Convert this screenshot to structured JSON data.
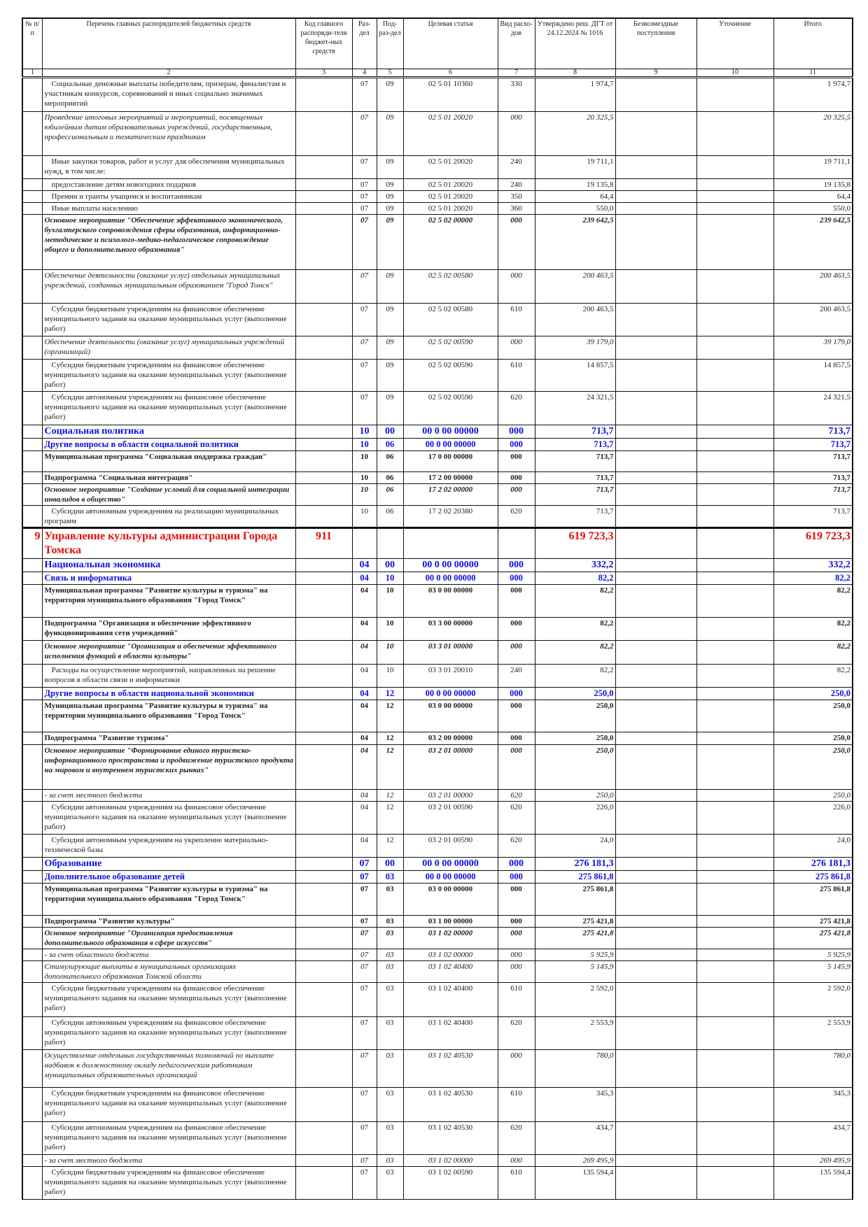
{
  "header": {
    "col1": "№ п/п",
    "col2": "Перечень главных распорядителей бюджетных средств",
    "col3": "Код главного распоряди-теля бюджет-ных средств",
    "col4": "Раз-дел",
    "col5": "Под-раз-дел",
    "col6": "Целевая статья",
    "col7": "Вид расхо-дов",
    "col8": "Утверждено реш. ДГТ от 24.12.2024 № 1016",
    "col9": "Безвозмездные поступления",
    "col10": "Уточнение",
    "col11": "Итого"
  },
  "column_numbers": [
    "1",
    "2",
    "3",
    "4",
    "5",
    "6",
    "7",
    "8",
    "9",
    "10",
    "11"
  ],
  "rows": [
    {
      "style": "n",
      "no": "",
      "name": "Социальные денежные выплаты победителям, призерам, финалистам и участникам конкурсов, соревнований и иных социально значимых мероприятий",
      "code": "",
      "razdel": "07",
      "podrazdel": "09",
      "target": "02 5 01 10360",
      "vid": "330",
      "approved": "1 974,7",
      "grants": "",
      "adjust": "",
      "total": "1 974,7"
    },
    {
      "style": "i",
      "no": "",
      "name": "Проведение итоговых мероприятий и мероприятий, посвященных юбилейным датам образовательных учреждений, государственным, профессиональным и тематическим праздникам",
      "code": "",
      "razdel": "07",
      "podrazdel": "09",
      "target": "02 5 01 20020",
      "vid": "000",
      "approved": "20 325,5",
      "grants": "",
      "adjust": "",
      "total": "20 325,5"
    },
    {
      "style": "n",
      "no": "",
      "name": "Иные закупки товаров, работ и услуг для обеспечения муниципальных нужд, в том числе:",
      "code": "",
      "razdel": "07",
      "podrazdel": "09",
      "target": "02 5 01 20020",
      "vid": "240",
      "approved": "19 711,1",
      "grants": "",
      "adjust": "",
      "total": "19 711,1"
    },
    {
      "style": "n",
      "no": "",
      "name": "предоставление детям новогодних подарков",
      "code": "",
      "razdel": "07",
      "podrazdel": "09",
      "target": "02 5 01 20020",
      "vid": "240",
      "approved": "19 135,8",
      "grants": "",
      "adjust": "",
      "total": "19 135,8"
    },
    {
      "style": "n",
      "no": "",
      "name": "Премии и гранты учащимся и воспитанникам",
      "code": "",
      "razdel": "07",
      "podrazdel": "09",
      "target": "02 5 01 20020",
      "vid": "350",
      "approved": "64,4",
      "grants": "",
      "adjust": "",
      "total": "64,4"
    },
    {
      "style": "n",
      "no": "",
      "name": "Иные выплаты населению",
      "code": "",
      "razdel": "07",
      "podrazdel": "09",
      "target": "02 5 01 20020",
      "vid": "360",
      "approved": "550,0",
      "grants": "",
      "adjust": "",
      "total": "550,0"
    },
    {
      "style": "bi",
      "no": "",
      "name": "Основное мероприятие \"Обеспечение эффективного экономического, бухгалтерского сопровождения сферы образования, информационно-методическое и психолого-медико-педагогическое сопровождение общего и дополнительного образования\"",
      "code": "",
      "razdel": "07",
      "podrazdel": "09",
      "target": "02 5 02 00000",
      "vid": "000",
      "approved": "239 642,5",
      "grants": "",
      "adjust": "",
      "total": "239 642,5"
    },
    {
      "style": "i",
      "no": "",
      "name": "Обеспечение деятельности (оказание услуг) отдельных муниципальных учреждений, созданных муниципальным образованием \"Город Томск\"",
      "code": "",
      "razdel": "07",
      "podrazdel": "09",
      "target": "02 5 02 00580",
      "vid": "000",
      "approved": "200 463,5",
      "grants": "",
      "adjust": "",
      "total": "200 463,5"
    },
    {
      "style": "n",
      "no": "",
      "name": "Субсидии бюджетным учреждениям на финансовое обеспечение муниципального задания на оказание муниципальных услуг (выполнение работ)",
      "code": "",
      "razdel": "07",
      "podrazdel": "09",
      "target": "02 5 02 00580",
      "vid": "610",
      "approved": "200 463,5",
      "grants": "",
      "adjust": "",
      "total": "200 463,5"
    },
    {
      "style": "i",
      "no": "",
      "name": "Обеспечение деятельности (оказание услуг) муниципальных учреждений (организаций)",
      "code": "",
      "razdel": "07",
      "podrazdel": "09",
      "target": "02 5 02 00590",
      "vid": "000",
      "approved": "39 179,0",
      "grants": "",
      "adjust": "",
      "total": "39 179,0"
    },
    {
      "style": "n",
      "no": "",
      "name": "Субсидии бюджетным учреждениям на финансовое обеспечение муниципального задания на оказание муниципальных услуг (выполнение работ)",
      "code": "",
      "razdel": "07",
      "podrazdel": "09",
      "target": "02 5 02 00590",
      "vid": "610",
      "approved": "14 857,5",
      "grants": "",
      "adjust": "",
      "total": "14 857,5"
    },
    {
      "style": "n",
      "no": "",
      "name": "Субсидии автономным учреждениям на финансовое обеспечение муниципального задания на оказание муниципальных услуг (выполнение работ)",
      "code": "",
      "razdel": "07",
      "podrazdel": "09",
      "target": "02 5 02 00590",
      "vid": "620",
      "approved": "24 321,5",
      "grants": "",
      "adjust": "",
      "total": "24 321,5"
    },
    {
      "style": "sec",
      "no": "",
      "name": "Социальная политика",
      "code": "",
      "razdel": "10",
      "podrazdel": "00",
      "target": "00 0 00 00000",
      "vid": "000",
      "approved": "713,7",
      "grants": "",
      "adjust": "",
      "total": "713,7"
    },
    {
      "style": "sub",
      "no": "",
      "name": "Другие вопросы в области социальной политики",
      "code": "",
      "razdel": "10",
      "podrazdel": "06",
      "target": "00 0 00 00000",
      "vid": "000",
      "approved": "713,7",
      "grants": "",
      "adjust": "",
      "total": "713,7"
    },
    {
      "style": "b",
      "no": "",
      "name": "Муниципальная программа \"Социальная поддержка граждан\"",
      "code": "",
      "razdel": "10",
      "podrazdel": "06",
      "target": "17 0 00 00000",
      "vid": "000",
      "approved": "713,7",
      "grants": "",
      "adjust": "",
      "total": "713,7"
    },
    {
      "style": "b",
      "no": "",
      "name": "Подпрограмма \"Социальная интеграция\"",
      "code": "",
      "razdel": "10",
      "podrazdel": "06",
      "target": "17 2 00 00000",
      "vid": "000",
      "approved": "713,7",
      "grants": "",
      "adjust": "",
      "total": "713,7"
    },
    {
      "style": "bi",
      "no": "",
      "name": "Основное мероприятие \"Создание условий для социальной интеграции инвалидов в общество\"",
      "code": "",
      "razdel": "10",
      "podrazdel": "06",
      "target": "17 2 02 00000",
      "vid": "000",
      "approved": "713,7",
      "grants": "",
      "adjust": "",
      "total": "713,7"
    },
    {
      "style": "n",
      "no": "",
      "name": "Субсидии автономным учреждениям на реализацию муниципальных программ",
      "code": "",
      "razdel": "10",
      "podrazdel": "06",
      "target": "17 2 02 20380",
      "vid": "620",
      "approved": "713,7",
      "grants": "",
      "adjust": "",
      "total": "713,7"
    },
    {
      "style": "dept",
      "no": "9",
      "name": "Управление культуры администрации Города Томска",
      "code": "911",
      "razdel": "",
      "podrazdel": "",
      "target": "",
      "vid": "",
      "approved": "619 723,3",
      "grants": "",
      "adjust": "",
      "total": "619 723,3"
    },
    {
      "style": "sec",
      "no": "",
      "name": "Национальная экономика",
      "code": "",
      "razdel": "04",
      "podrazdel": "00",
      "target": "00 0 00 00000",
      "vid": "000",
      "approved": "332,2",
      "grants": "",
      "adjust": "",
      "total": "332,2"
    },
    {
      "style": "sub",
      "no": "",
      "name": "Связь и информатика",
      "code": "",
      "razdel": "04",
      "podrazdel": "10",
      "target": "00 0 00 00000",
      "vid": "000",
      "approved": "82,2",
      "grants": "",
      "adjust": "",
      "total": "82,2"
    },
    {
      "style": "b",
      "no": "",
      "name": "Муниципальная программа \"Развитие культуры и туризма\" на территории муниципального образования \"Город Томск\"",
      "code": "",
      "razdel": "04",
      "podrazdel": "10",
      "target": "03 0 00 00000",
      "vid": "000",
      "approved": "82,2",
      "grants": "",
      "adjust": "",
      "total": "82,2"
    },
    {
      "style": "b",
      "no": "",
      "name": "Подпрограмма \"Организация и обеспечение эффективного функционирования сети учреждений\"",
      "code": "",
      "razdel": "04",
      "podrazdel": "10",
      "target": "03 3 00 00000",
      "vid": "000",
      "approved": "82,2",
      "grants": "",
      "adjust": "",
      "total": "82,2"
    },
    {
      "style": "bi",
      "no": "",
      "name": "Основное мероприятие \"Организация и обеспечение эффективного исполнения функций в области культуры\"",
      "code": "",
      "razdel": "04",
      "podrazdel": "10",
      "target": "03 3 01 00000",
      "vid": "000",
      "approved": "82,2",
      "grants": "",
      "adjust": "",
      "total": "82,2"
    },
    {
      "style": "n",
      "no": "",
      "name": "Расходы на осуществление мероприятий, направленных на решение вопросов в области связи и информатики",
      "code": "",
      "razdel": "04",
      "podrazdel": "10",
      "target": "03 3 01 20010",
      "vid": "240",
      "approved": "82,2",
      "grants": "",
      "adjust": "",
      "total": "82,2"
    },
    {
      "style": "sub",
      "no": "",
      "name": "Другие вопросы в области национальной экономики",
      "code": "",
      "razdel": "04",
      "podrazdel": "12",
      "target": "00 0 00 00000",
      "vid": "000",
      "approved": "250,0",
      "grants": "",
      "adjust": "",
      "total": "250,0"
    },
    {
      "style": "b",
      "no": "",
      "name": "Муниципальная программа \"Развитие культуры и туризма\" на территории муниципального образования \"Город Томск\"",
      "code": "",
      "razdel": "04",
      "podrazdel": "12",
      "target": "03 0 00 00000",
      "vid": "000",
      "approved": "250,0",
      "grants": "",
      "adjust": "",
      "total": "250,0"
    },
    {
      "style": "b",
      "no": "",
      "name": "Подпрограмма \"Развитие туризма\"",
      "code": "",
      "razdel": "04",
      "podrazdel": "12",
      "target": "03 2 00 00000",
      "vid": "000",
      "approved": "250,0",
      "grants": "",
      "adjust": "",
      "total": "250,0"
    },
    {
      "style": "bi",
      "no": "",
      "name": "Основное мероприятие \"Формирование единого туристско-информационного пространства и продвижение туристского продукта на мировом и внутреннем туристских рынках\"",
      "code": "",
      "razdel": "04",
      "podrazdel": "12",
      "target": "03 2 01 00000",
      "vid": "000",
      "approved": "250,0",
      "grants": "",
      "adjust": "",
      "total": "250,0"
    },
    {
      "style": "i",
      "no": "",
      "name": "- за счет местного бюджета",
      "code": "",
      "razdel": "04",
      "podrazdel": "12",
      "target": "03 2 01 00000",
      "vid": "620",
      "approved": "250,0",
      "grants": "",
      "adjust": "",
      "total": "250,0"
    },
    {
      "style": "n",
      "no": "",
      "name": "Субсидии автономным учреждениям на финансовое обеспечение муниципального задания на оказание муниципальных услуг (выполнение работ)",
      "code": "",
      "razdel": "04",
      "podrazdel": "12",
      "target": "03 2 01 00590",
      "vid": "620",
      "approved": "226,0",
      "grants": "",
      "adjust": "",
      "total": "226,0"
    },
    {
      "style": "n",
      "no": "",
      "name": "Субсидии автономным учреждениям на укрепление материально-технической базы",
      "code": "",
      "razdel": "04",
      "podrazdel": "12",
      "target": "03 2 01 00590",
      "vid": "620",
      "approved": "24,0",
      "grants": "",
      "adjust": "",
      "total": "24,0"
    },
    {
      "style": "sec",
      "no": "",
      "name": "Образование",
      "code": "",
      "razdel": "07",
      "podrazdel": "00",
      "target": "00 0 00 00000",
      "vid": "000",
      "approved": "276 181,3",
      "grants": "",
      "adjust": "",
      "total": "276 181,3"
    },
    {
      "style": "sub",
      "no": "",
      "name": "Дополнительное образование детей",
      "code": "",
      "razdel": "07",
      "podrazdel": "03",
      "target": "00 0 00 00000",
      "vid": "000",
      "approved": "275 861,8",
      "grants": "",
      "adjust": "",
      "total": "275 861,8"
    },
    {
      "style": "b",
      "no": "",
      "name": "Муниципальная программа \"Развитие культуры и туризма\" на территории муниципального образования \"Город Томск\"",
      "code": "",
      "razdel": "07",
      "podrazdel": "03",
      "target": "03 0 00 00000",
      "vid": "000",
      "approved": "275 861,8",
      "grants": "",
      "adjust": "",
      "total": "275 861,8"
    },
    {
      "style": "b",
      "no": "",
      "name": "Подпрограмма \"Развитие культуры\"",
      "code": "",
      "razdel": "07",
      "podrazdel": "03",
      "target": "03 1 00 00000",
      "vid": "000",
      "approved": "275 421,8",
      "grants": "",
      "adjust": "",
      "total": "275 421,8"
    },
    {
      "style": "bi",
      "no": "",
      "name": "Основное мероприятие \"Организация предоставления дополнительного образования в сфере искусств\"",
      "code": "",
      "razdel": "07",
      "podrazdel": "03",
      "target": "03 1 02 00000",
      "vid": "000",
      "approved": "275 421,8",
      "grants": "",
      "adjust": "",
      "total": "275 421,8"
    },
    {
      "style": "i",
      "no": "",
      "name": "- за счет областного бюджета",
      "code": "",
      "razdel": "07",
      "podrazdel": "03",
      "target": "03 1 02 00000",
      "vid": "000",
      "approved": "5 925,9",
      "grants": "",
      "adjust": "",
      "total": "5 925,9"
    },
    {
      "style": "i",
      "no": "",
      "name": "Стимулирующие выплаты в муниципальных организациях дополнительного образования Томской области",
      "code": "",
      "razdel": "07",
      "podrazdel": "03",
      "target": "03 1 02 40400",
      "vid": "000",
      "approved": "5 145,9",
      "grants": "",
      "adjust": "",
      "total": "5 145,9"
    },
    {
      "style": "n",
      "no": "",
      "name": "Субсидии бюджетным учреждениям на финансовое обеспечение муниципального задания на оказание муниципальных услуг (выполнение работ)",
      "code": "",
      "razdel": "07",
      "podrazdel": "03",
      "target": "03 1 02 40400",
      "vid": "610",
      "approved": "2 592,0",
      "grants": "",
      "adjust": "",
      "total": "2 592,0"
    },
    {
      "style": "n",
      "no": "",
      "name": "Субсидии автономным учреждениям на финансовое обеспечение муниципального задания на оказание муниципальных услуг (выполнение работ)",
      "code": "",
      "razdel": "07",
      "podrazdel": "03",
      "target": "03 1 02 40400",
      "vid": "620",
      "approved": "2 553,9",
      "grants": "",
      "adjust": "",
      "total": "2 553,9"
    },
    {
      "style": "i",
      "no": "",
      "name": "Осуществление отдельных государственных полномочий по выплате надбавок к должностному окладу педагогическим работникам муниципальных образовательных организаций",
      "code": "",
      "razdel": "07",
      "podrazdel": "03",
      "target": "03 1 02 40530",
      "vid": "000",
      "approved": "780,0",
      "grants": "",
      "adjust": "",
      "total": "780,0"
    },
    {
      "style": "n",
      "no": "",
      "name": "Субсидии бюджетным учреждениям на финансовое обеспечение муниципального задания на оказание муниципальных услуг (выполнение работ)",
      "code": "",
      "razdel": "07",
      "podrazdel": "03",
      "target": "03 1 02 40530",
      "vid": "610",
      "approved": "345,3",
      "grants": "",
      "adjust": "",
      "total": "345,3"
    },
    {
      "style": "n",
      "no": "",
      "name": "Субсидии автономным учреждениям на финансовое обеспечение муниципального задания на оказание муниципальных услуг (выполнение работ)",
      "code": "",
      "razdel": "07",
      "podrazdel": "03",
      "target": "03 1 02 40530",
      "vid": "620",
      "approved": "434,7",
      "grants": "",
      "adjust": "",
      "total": "434,7"
    },
    {
      "style": "i",
      "no": "",
      "name": "- за счет местного бюджета",
      "code": "",
      "razdel": "07",
      "podrazdel": "03",
      "target": "03 1 02 00000",
      "vid": "000",
      "approved": "269 495,9",
      "grants": "",
      "adjust": "",
      "total": "269 495,9"
    },
    {
      "style": "n",
      "no": "",
      "name": "Субсидии бюджетным учреждениям на финансовое обеспечение муниципального задания на оказание муниципальных услуг (выполнение работ)",
      "code": "",
      "razdel": "07",
      "podrazdel": "03",
      "target": "03 1 02 00590",
      "vid": "610",
      "approved": "135 594,4",
      "grants": "",
      "adjust": "",
      "total": "135 594,4"
    }
  ]
}
